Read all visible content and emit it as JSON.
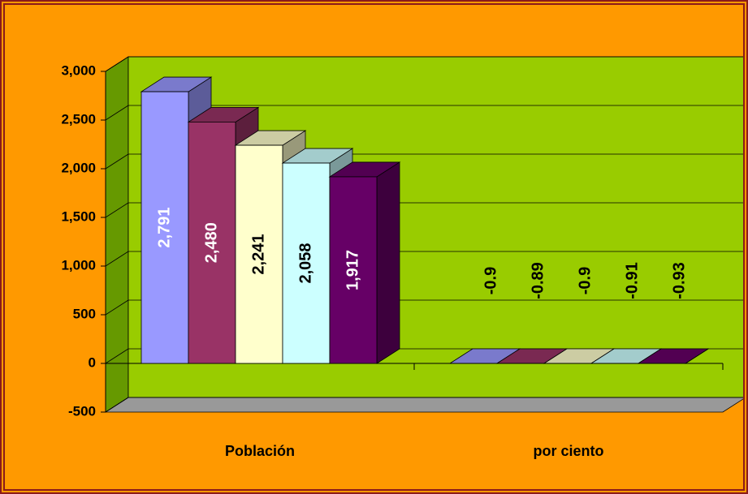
{
  "chart_data": {
    "type": "bar3d",
    "categories": [
      "Población",
      "por ciento"
    ],
    "series": [
      {
        "color": "#9999FF",
        "values": [
          2791,
          -0.9
        ],
        "value_labels": [
          "2,791",
          "-0.9"
        ]
      },
      {
        "color": "#993366",
        "values": [
          2480,
          -0.89
        ],
        "value_labels": [
          "2,480",
          "-0.89"
        ]
      },
      {
        "color": "#FFFFCC",
        "values": [
          2241,
          -0.9
        ],
        "value_labels": [
          "2,241",
          "-0.9"
        ]
      },
      {
        "color": "#CCFFFF",
        "values": [
          2058,
          -0.91
        ],
        "value_labels": [
          "2,058",
          "-0.91"
        ]
      },
      {
        "color": "#660066",
        "values": [
          1917,
          -0.93
        ],
        "value_labels": [
          "1,917",
          "-0.93"
        ]
      }
    ],
    "ylim": [
      -500,
      3000
    ],
    "yticks": [
      -500,
      0,
      500,
      {
        "value": 1000,
        "label": "1,000"
      },
      {
        "value": 1500,
        "label": "1,500"
      },
      {
        "value": 2000,
        "label": "2,000"
      },
      {
        "value": 2500,
        "label": "2,500"
      },
      {
        "value": 3000,
        "label": "3,000"
      }
    ],
    "grid": true
  }
}
